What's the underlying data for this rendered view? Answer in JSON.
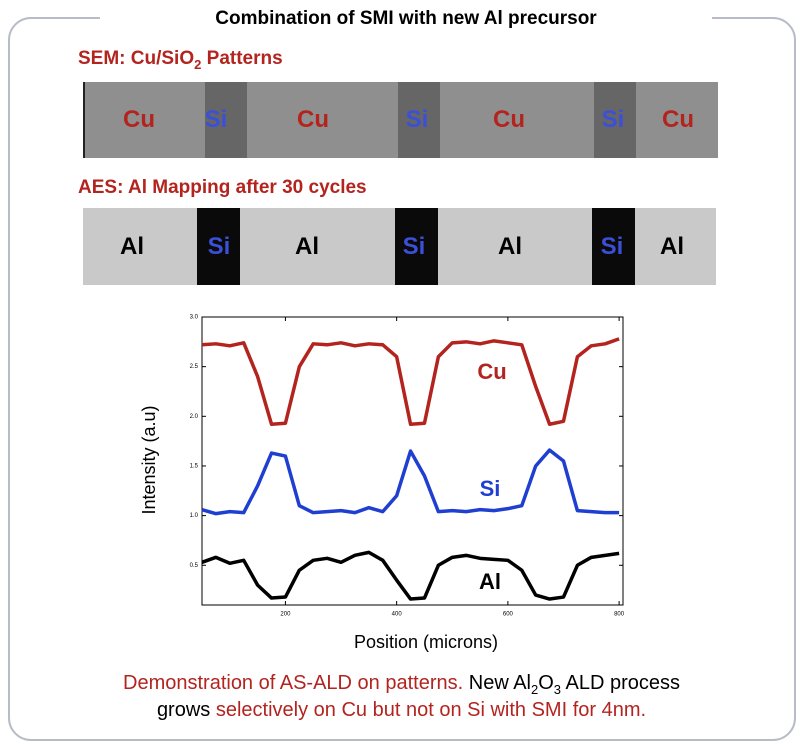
{
  "title": "Combination of SMI with new Al precursor",
  "sem": {
    "heading": [
      "SEM: Cu/SiO",
      "2",
      "Patterns"
    ],
    "labels": [
      "Cu",
      "Si",
      "Cu",
      "Si",
      "Cu",
      "Si",
      "Cu"
    ]
  },
  "aes": {
    "heading": "AES: Al Mapping after 30 cycles",
    "labels": [
      "Al",
      "Si",
      "Al",
      "Si",
      "Al",
      "Si",
      "Al"
    ]
  },
  "chart_data": {
    "type": "line",
    "xlabel": "Position (microns)",
    "ylabel": "Intensity (a.u)",
    "x": [
      50,
      75,
      100,
      125,
      150,
      175,
      200,
      225,
      250,
      275,
      300,
      325,
      350,
      375,
      400,
      425,
      450,
      475,
      500,
      525,
      550,
      575,
      600,
      625,
      650,
      675,
      700,
      725,
      750,
      775,
      800
    ],
    "series": [
      {
        "name": "Cu",
        "color": "#b3241f",
        "values": [
          2.72,
          2.73,
          2.71,
          2.74,
          2.4,
          1.92,
          1.93,
          2.5,
          2.73,
          2.72,
          2.74,
          2.71,
          2.73,
          2.72,
          2.6,
          1.92,
          1.93,
          2.6,
          2.74,
          2.75,
          2.73,
          2.76,
          2.74,
          2.72,
          2.3,
          1.92,
          1.95,
          2.6,
          2.71,
          2.73,
          2.78
        ]
      },
      {
        "name": "Si",
        "color": "#1f3fd0",
        "values": [
          1.06,
          1.02,
          1.04,
          1.03,
          1.3,
          1.63,
          1.6,
          1.1,
          1.03,
          1.04,
          1.05,
          1.03,
          1.08,
          1.04,
          1.2,
          1.65,
          1.4,
          1.04,
          1.05,
          1.04,
          1.06,
          1.05,
          1.07,
          1.1,
          1.5,
          1.66,
          1.55,
          1.05,
          1.04,
          1.03,
          1.03
        ]
      },
      {
        "name": "Al",
        "color": "#000000",
        "values": [
          0.53,
          0.58,
          0.52,
          0.55,
          0.3,
          0.17,
          0.18,
          0.45,
          0.55,
          0.57,
          0.53,
          0.6,
          0.63,
          0.55,
          0.35,
          0.16,
          0.17,
          0.5,
          0.58,
          0.6,
          0.57,
          0.56,
          0.55,
          0.45,
          0.2,
          0.16,
          0.18,
          0.5,
          0.58,
          0.6,
          0.62
        ]
      }
    ],
    "xlim": [
      50,
      807
    ],
    "ylim": [
      0.1,
      3.0
    ],
    "xticks": [
      200,
      400,
      600,
      800
    ],
    "yticks": [
      {
        "value": 3.0,
        "label": "3.0"
      },
      2.5,
      {
        "value": 2.0,
        "label": "2.0"
      },
      1.5,
      {
        "value": 1.0,
        "label": "1.0"
      },
      0.5
    ]
  },
  "caption": {
    "line1": [
      "Demonstration of AS-ALD on patterns.",
      "New Al",
      "2",
      "O",
      "3",
      "ALD process"
    ],
    "line2": [
      "grows",
      "selectively on Cu but not on Si with SMI for 4nm."
    ]
  }
}
